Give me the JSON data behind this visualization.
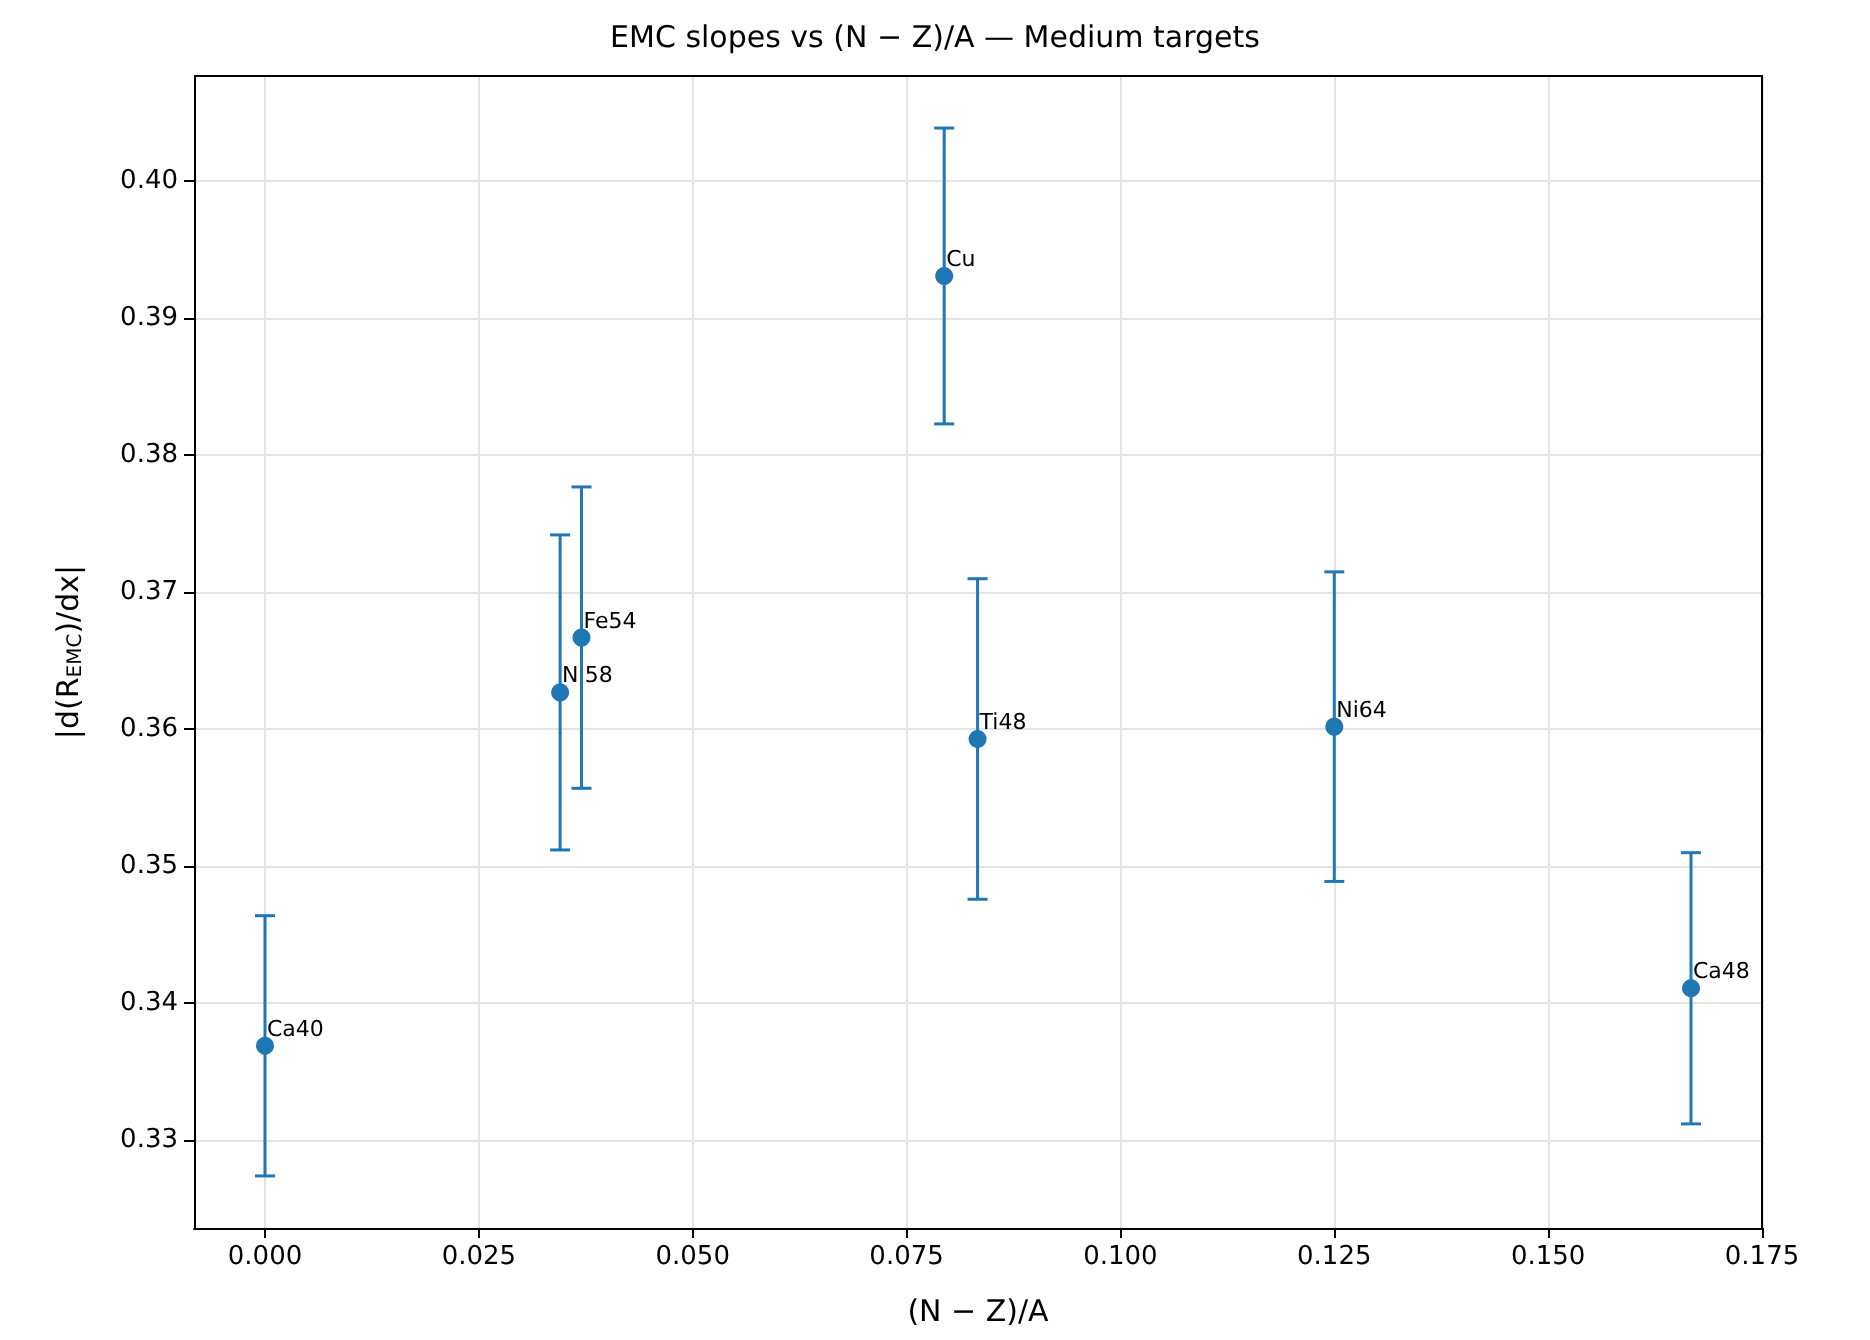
{
  "chart_data": {
    "type": "scatter",
    "title": "EMC slopes vs (N − Z)/A — Medium targets",
    "xlabel": "(N − Z)/A",
    "ylabel": "|d(R$_{EMC}$)/dx|",
    "x": [
      0.0,
      0.0345,
      0.037,
      0.0794,
      0.0833,
      0.125,
      0.1667
    ],
    "series": [
      {
        "color": "#1f77b4",
        "values": [
          0.3369,
          0.3627,
          0.3667,
          0.3931,
          0.3593,
          0.3602,
          0.3411
        ],
        "errors": [
          0.0095,
          0.0115,
          0.011,
          0.0108,
          0.0117,
          0.0113,
          0.0099
        ]
      }
    ],
    "annotations": [
      {
        "text": "Ca40",
        "x": 0.0,
        "y": 0.3369
      },
      {
        "text": "Ni58",
        "x": 0.0345,
        "y": 0.3627
      },
      {
        "text": "Fe54",
        "x": 0.037,
        "y": 0.3667
      },
      {
        "text": "Cu",
        "x": 0.0794,
        "y": 0.3931
      },
      {
        "text": "Ti48",
        "x": 0.0833,
        "y": 0.3593
      },
      {
        "text": "Ni64",
        "x": 0.125,
        "y": 0.3602
      },
      {
        "text": "Ca48",
        "x": 0.1667,
        "y": 0.3411
      }
    ],
    "xlim": [
      -0.0083,
      0.175
    ],
    "xticks": [
      {
        "value": 0,
        "label": "0.000"
      },
      {
        "value": 0.025,
        "label": "0.025"
      },
      {
        "value": 0.05,
        "label": "0.050"
      },
      {
        "value": 0.075,
        "label": "0.075"
      },
      {
        "value": 0.1,
        "label": "0.100"
      },
      {
        "value": 0.125,
        "label": "0.125"
      },
      {
        "value": 0.15,
        "label": "0.150"
      },
      {
        "value": 0.175,
        "label": "0.175"
      }
    ],
    "ylim": [
      0.3236,
      0.4077
    ],
    "yticks": [
      {
        "value": 0.33,
        "label": "0.33"
      },
      {
        "value": 0.34,
        "label": "0.34"
      },
      {
        "value": 0.35,
        "label": "0.35"
      },
      {
        "value": 0.36,
        "label": "0.36"
      },
      {
        "value": 0.37,
        "label": "0.37"
      },
      {
        "value": 0.38,
        "label": "0.38"
      },
      {
        "value": 0.39,
        "label": "0.39"
      },
      {
        "value": 0.4,
        "label": "0.40"
      }
    ],
    "grid": true,
    "marker": "circle"
  }
}
